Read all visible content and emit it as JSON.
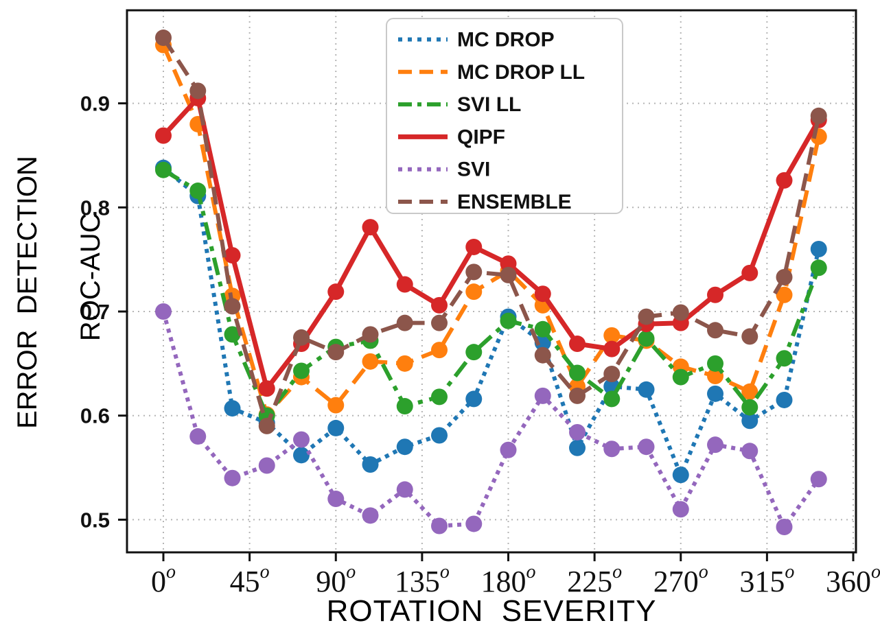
{
  "figure": {
    "xlabel": "ROTATION  SEVERITY",
    "ylabel_line1": "ERROR  DETECTION",
    "ylabel_line2": "ROC-AUC"
  },
  "legend": {
    "items": [
      {
        "id": "mc-drop",
        "label": "MC DROP"
      },
      {
        "id": "mc-drop-ll",
        "label": "MC DROP LL"
      },
      {
        "id": "svi-ll",
        "label": "SVI LL"
      },
      {
        "id": "qipf",
        "label": "QIPF"
      },
      {
        "id": "svi",
        "label": "SVI"
      },
      {
        "id": "ensemble",
        "label": "ENSEMBLE"
      }
    ]
  },
  "chart_data": {
    "type": "line",
    "title": "",
    "xlabel": "ROTATION  SEVERITY",
    "ylabel": "ERROR DETECTION ROC-AUC",
    "x_unit": "degrees",
    "grid": true,
    "legend_position": "upper center",
    "xlim": [
      -19,
      361.4
    ],
    "ylim": [
      0.469,
      0.989
    ],
    "xticks": [
      0,
      45,
      90,
      135,
      180,
      225,
      270,
      315,
      360
    ],
    "x_tick_labels": [
      "0",
      "45",
      "90",
      "135",
      "180",
      "225",
      "270",
      "315",
      "360"
    ],
    "degree_symbol": "o",
    "yticks": [
      0.5,
      0.6,
      0.7,
      0.8,
      0.9
    ],
    "y_tick_labels": [
      "0.5",
      "0.6",
      "0.7",
      "0.8",
      "0.9"
    ],
    "x": [
      0,
      18,
      36,
      54,
      72,
      90,
      108,
      126,
      144,
      162,
      180,
      198,
      216,
      234,
      252,
      270,
      288,
      306,
      324,
      342
    ],
    "series": [
      {
        "name": "MC DROP",
        "color": "#1f77b4",
        "style": "dotted",
        "values": [
          0.838,
          0.811,
          0.607,
          0.593,
          0.562,
          0.588,
          0.553,
          0.57,
          0.581,
          0.616,
          0.695,
          0.67,
          0.569,
          0.628,
          0.625,
          0.543,
          0.621,
          0.595,
          0.615,
          0.76
        ]
      },
      {
        "name": "MC DROP LL",
        "color": "#ff7f0e",
        "style": "dashed",
        "values": [
          0.956,
          0.88,
          0.715,
          0.601,
          0.637,
          0.61,
          0.652,
          0.65,
          0.663,
          0.719,
          0.739,
          0.706,
          0.628,
          0.677,
          0.672,
          0.647,
          0.638,
          0.623,
          0.716,
          0.868
        ]
      },
      {
        "name": "SVI LL",
        "color": "#2ca02c",
        "style": "dashdot",
        "values": [
          0.836,
          0.816,
          0.678,
          0.6,
          0.643,
          0.666,
          0.672,
          0.609,
          0.618,
          0.661,
          0.691,
          0.683,
          0.641,
          0.616,
          0.674,
          0.637,
          0.65,
          0.608,
          0.655,
          0.742
        ]
      },
      {
        "name": "QIPF",
        "color": "#d62728",
        "style": "solid",
        "values": [
          0.869,
          0.905,
          0.754,
          0.626,
          0.669,
          0.719,
          0.781,
          0.726,
          0.706,
          0.762,
          0.746,
          0.717,
          0.669,
          0.664,
          0.688,
          0.689,
          0.716,
          0.737,
          0.826,
          0.884
        ]
      },
      {
        "name": "SVI",
        "color": "#9467bd",
        "style": "dotted",
        "values": [
          0.7,
          0.58,
          0.54,
          0.552,
          0.577,
          0.52,
          0.504,
          0.529,
          0.494,
          0.496,
          0.567,
          0.619,
          0.584,
          0.568,
          0.57,
          0.51,
          0.572,
          0.566,
          0.493,
          0.539
        ]
      },
      {
        "name": "ENSEMBLE",
        "color": "#8c564b",
        "style": "dashed",
        "values": [
          0.963,
          0.912,
          0.705,
          0.59,
          0.675,
          0.661,
          0.678,
          0.689,
          0.689,
          0.738,
          0.735,
          0.658,
          0.619,
          0.64,
          0.695,
          0.699,
          0.682,
          0.676,
          0.733,
          0.888
        ]
      }
    ]
  }
}
